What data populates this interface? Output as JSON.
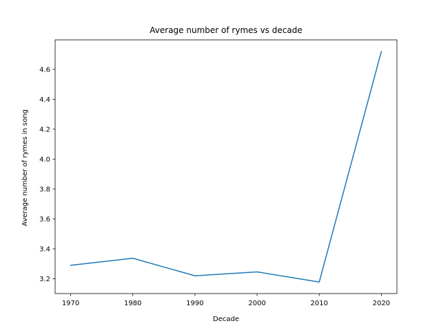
{
  "chart_data": {
    "type": "line",
    "title": "Average number of rymes vs decade",
    "xlabel": "Decade",
    "ylabel": "Average number of rymes in song",
    "x": [
      1970,
      1980,
      1990,
      2000,
      2010,
      2020
    ],
    "series": [
      {
        "name": "",
        "values": [
          3.29,
          3.337,
          3.22,
          3.246,
          3.178,
          4.72
        ],
        "color": "#1f77b4"
      }
    ],
    "xticks": [
      1970,
      1980,
      1990,
      2000,
      2010,
      2020
    ],
    "xtick_labels": [
      "1970",
      "1980",
      "1990",
      "2000",
      "2010",
      "2020"
    ],
    "yticks": [
      3.2,
      3.4,
      3.6,
      3.8,
      4.0,
      4.2,
      4.4,
      4.6
    ],
    "ytick_labels": [
      "3.2",
      "3.4",
      "3.6",
      "3.8",
      "4.0",
      "4.2",
      "4.4",
      "4.6"
    ],
    "xlim": [
      1967.5,
      2022.5
    ],
    "ylim": [
      3.101,
      4.797
    ],
    "grid": false,
    "legend": "none"
  }
}
